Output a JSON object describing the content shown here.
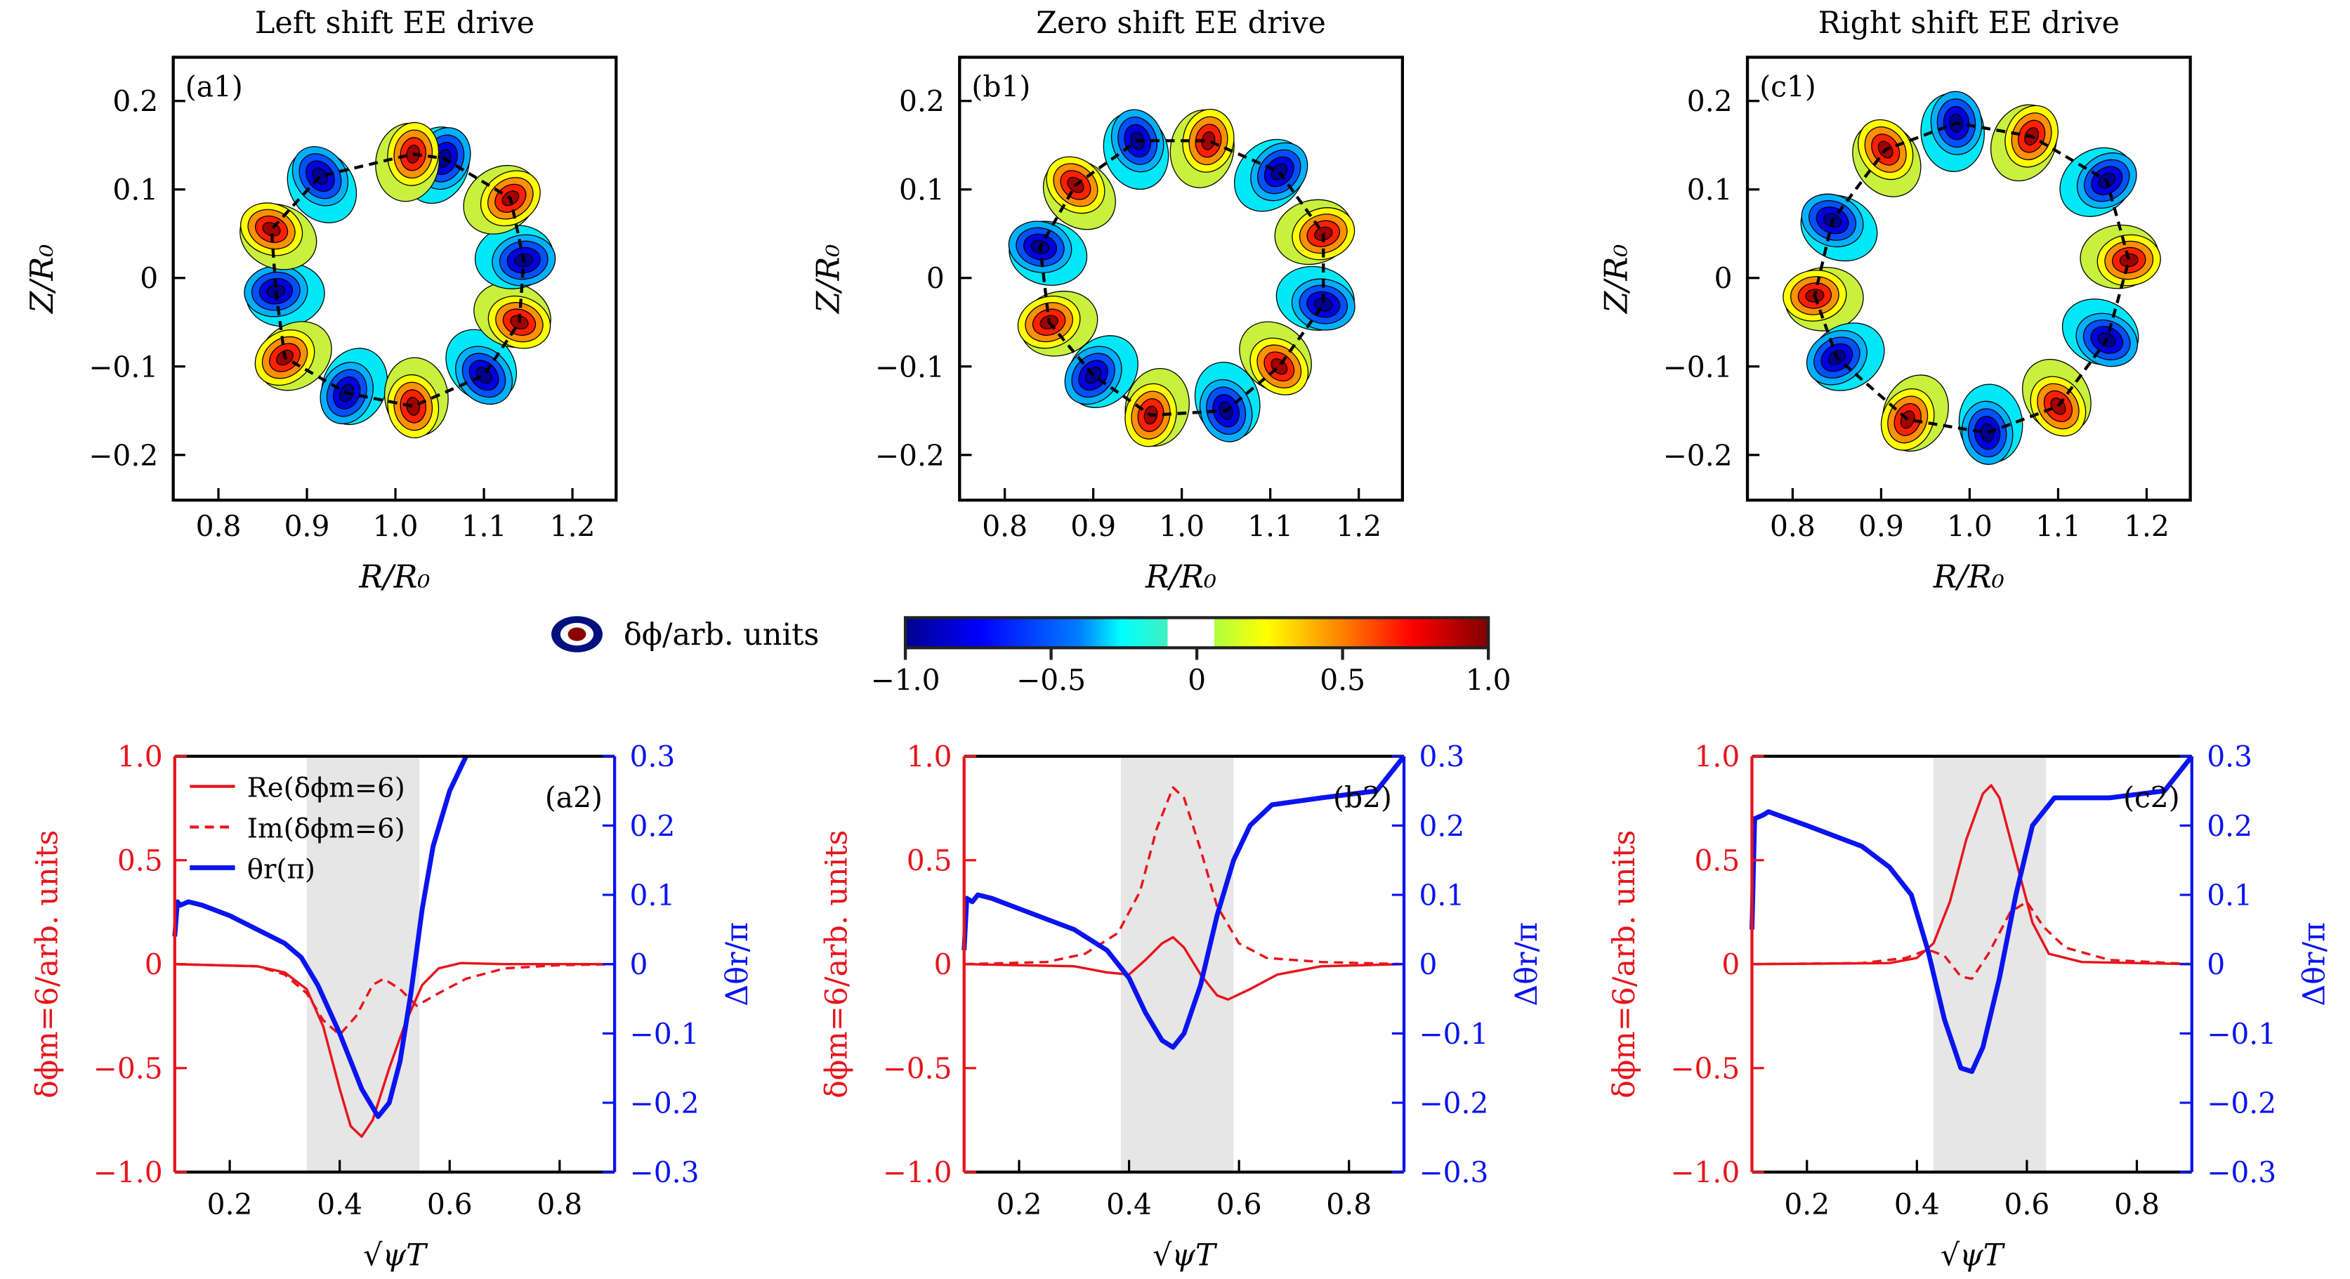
{
  "colors": {
    "red": "#e8141c",
    "blue": "#0a14f0",
    "shade": "#e6e6e6"
  },
  "top_panels": [
    {
      "title": "Left shift EE drive",
      "label": "(a1)",
      "red": [
        [
          1.02,
          0.14
        ],
        [
          1.13,
          0.09
        ],
        [
          1.14,
          -0.05
        ],
        [
          1.02,
          -0.145
        ],
        [
          0.875,
          -0.09
        ],
        [
          0.86,
          0.055
        ]
      ],
      "blue": [
        [
          1.055,
          0.135
        ],
        [
          0.915,
          0.115
        ],
        [
          0.865,
          -0.015
        ],
        [
          0.945,
          -0.13
        ],
        [
          1.1,
          -0.11
        ],
        [
          1.145,
          0.02
        ]
      ]
    },
    {
      "title": "Zero shift EE drive",
      "label": "(b1)",
      "red": [
        [
          1.03,
          0.155
        ],
        [
          1.16,
          0.05
        ],
        [
          1.11,
          -0.1
        ],
        [
          0.965,
          -0.155
        ],
        [
          0.85,
          -0.05
        ],
        [
          0.88,
          0.105
        ]
      ],
      "blue": [
        [
          0.95,
          0.155
        ],
        [
          1.11,
          0.12
        ],
        [
          1.16,
          -0.03
        ],
        [
          1.05,
          -0.15
        ],
        [
          0.9,
          -0.11
        ],
        [
          0.84,
          0.035
        ]
      ]
    },
    {
      "title": "Right shift EE drive",
      "label": "(c1)",
      "red": [
        [
          1.07,
          0.16
        ],
        [
          1.18,
          0.02
        ],
        [
          1.1,
          -0.145
        ],
        [
          0.93,
          -0.16
        ],
        [
          0.825,
          -0.02
        ],
        [
          0.905,
          0.145
        ]
      ],
      "blue": [
        [
          0.985,
          0.175
        ],
        [
          1.155,
          0.11
        ],
        [
          1.155,
          -0.07
        ],
        [
          1.02,
          -0.175
        ],
        [
          0.85,
          -0.09
        ],
        [
          0.845,
          0.065
        ]
      ]
    }
  ],
  "top_axes": {
    "xlabel": "R/R₀",
    "ylabel": "Z/R₀",
    "xticks": [
      "0.8",
      "0.9",
      "1.0",
      "1.1",
      "1.2"
    ],
    "xtick_values": [
      0.8,
      0.9,
      1.0,
      1.1,
      1.2
    ],
    "yticks": [
      "0.2",
      "0.1",
      "0",
      "−0.1",
      "−0.2"
    ],
    "ytick_values": [
      0.2,
      0.1,
      0,
      -0.1,
      -0.2
    ]
  },
  "colorbar": {
    "label": "δϕ/arb. units",
    "ticks": [
      "−1.0",
      "−0.5",
      "0",
      "0.5",
      "1.0"
    ],
    "range": [
      -1,
      1
    ]
  },
  "chart_data": [
    {
      "type": "line",
      "label": "(a2)",
      "shade": [
        0.34,
        0.545
      ],
      "series": [
        {
          "name": "Re(δϕm=6)",
          "axis": "left",
          "style": "solid",
          "x": [
            0.1,
            0.25,
            0.3,
            0.34,
            0.37,
            0.4,
            0.42,
            0.44,
            0.46,
            0.49,
            0.52,
            0.55,
            0.58,
            0.62,
            0.7,
            0.9
          ],
          "y": [
            0,
            -0.01,
            -0.04,
            -0.12,
            -0.3,
            -0.6,
            -0.78,
            -0.83,
            -0.75,
            -0.5,
            -0.28,
            -0.1,
            -0.02,
            0.005,
            0,
            0
          ]
        },
        {
          "name": "Im(δϕm=6)",
          "axis": "left",
          "style": "dashed",
          "x": [
            0.1,
            0.25,
            0.3,
            0.34,
            0.37,
            0.4,
            0.43,
            0.46,
            0.48,
            0.51,
            0.54,
            0.58,
            0.63,
            0.7,
            0.8,
            0.9
          ],
          "y": [
            0,
            -0.01,
            -0.05,
            -0.14,
            -0.27,
            -0.34,
            -0.25,
            -0.1,
            -0.07,
            -0.12,
            -0.2,
            -0.14,
            -0.07,
            -0.02,
            -0.005,
            0
          ]
        },
        {
          "name": "θr(π)",
          "axis": "right",
          "style": "thick",
          "x": [
            0.1,
            0.105,
            0.11,
            0.125,
            0.15,
            0.2,
            0.25,
            0.3,
            0.33,
            0.36,
            0.4,
            0.44,
            0.47,
            0.49,
            0.51,
            0.53,
            0.55,
            0.57,
            0.6,
            0.63
          ],
          "y": [
            0.04,
            0.09,
            0.085,
            0.09,
            0.085,
            0.07,
            0.05,
            0.03,
            0.01,
            -0.03,
            -0.1,
            -0.18,
            -0.22,
            -0.2,
            -0.14,
            -0.04,
            0.08,
            0.17,
            0.25,
            0.3
          ]
        }
      ]
    },
    {
      "type": "line",
      "label": "(b2)",
      "shade": [
        0.385,
        0.59
      ],
      "series": [
        {
          "name": "Re(δϕm=6)",
          "axis": "left",
          "style": "solid",
          "x": [
            0.1,
            0.3,
            0.36,
            0.4,
            0.43,
            0.46,
            0.48,
            0.5,
            0.53,
            0.56,
            0.58,
            0.62,
            0.67,
            0.75,
            0.9
          ],
          "y": [
            0,
            -0.01,
            -0.04,
            -0.05,
            0.02,
            0.1,
            0.13,
            0.08,
            -0.05,
            -0.15,
            -0.17,
            -0.12,
            -0.05,
            -0.01,
            0
          ]
        },
        {
          "name": "Im(δϕm=6)",
          "axis": "left",
          "style": "dashed",
          "x": [
            0.1,
            0.25,
            0.32,
            0.38,
            0.42,
            0.45,
            0.48,
            0.5,
            0.53,
            0.56,
            0.6,
            0.65,
            0.75,
            0.9
          ],
          "y": [
            0,
            0.01,
            0.05,
            0.15,
            0.35,
            0.65,
            0.85,
            0.8,
            0.55,
            0.28,
            0.1,
            0.03,
            0.01,
            0
          ]
        },
        {
          "name": "θr(π)",
          "axis": "right",
          "style": "thick",
          "x": [
            0.1,
            0.105,
            0.115,
            0.125,
            0.15,
            0.2,
            0.3,
            0.36,
            0.4,
            0.43,
            0.46,
            0.48,
            0.5,
            0.53,
            0.56,
            0.59,
            0.62,
            0.66,
            0.75,
            0.85,
            0.9
          ],
          "y": [
            0.02,
            0.095,
            0.09,
            0.1,
            0.095,
            0.08,
            0.05,
            0.02,
            -0.02,
            -0.07,
            -0.11,
            -0.12,
            -0.1,
            -0.03,
            0.07,
            0.15,
            0.2,
            0.23,
            0.24,
            0.25,
            0.3
          ]
        }
      ]
    },
    {
      "type": "line",
      "label": "(c2)",
      "shade": [
        0.43,
        0.635
      ],
      "series": [
        {
          "name": "Re(δϕm=6)",
          "axis": "left",
          "style": "solid",
          "x": [
            0.1,
            0.35,
            0.4,
            0.43,
            0.46,
            0.49,
            0.52,
            0.535,
            0.55,
            0.58,
            0.61,
            0.64,
            0.7,
            0.9
          ],
          "y": [
            0,
            0.005,
            0.03,
            0.1,
            0.3,
            0.6,
            0.82,
            0.86,
            0.8,
            0.5,
            0.2,
            0.05,
            0.01,
            0
          ]
        },
        {
          "name": "Im(δϕm=6)",
          "axis": "left",
          "style": "dashed",
          "x": [
            0.1,
            0.3,
            0.38,
            0.42,
            0.45,
            0.48,
            0.5,
            0.53,
            0.57,
            0.6,
            0.63,
            0.67,
            0.75,
            0.9
          ],
          "y": [
            0,
            0.005,
            0.03,
            0.07,
            0.04,
            -0.06,
            -0.07,
            0.05,
            0.25,
            0.3,
            0.18,
            0.08,
            0.02,
            0
          ]
        },
        {
          "name": "θr(π)",
          "axis": "right",
          "style": "thick",
          "x": [
            0.1,
            0.105,
            0.12,
            0.13,
            0.2,
            0.3,
            0.35,
            0.39,
            0.42,
            0.45,
            0.48,
            0.5,
            0.52,
            0.55,
            0.58,
            0.61,
            0.65,
            0.75,
            0.85,
            0.9
          ],
          "y": [
            0.05,
            0.21,
            0.215,
            0.22,
            0.2,
            0.17,
            0.14,
            0.1,
            0.02,
            -0.08,
            -0.15,
            -0.155,
            -0.12,
            -0.02,
            0.1,
            0.2,
            0.24,
            0.24,
            0.25,
            0.3
          ]
        }
      ]
    }
  ],
  "bottom_axes": {
    "xlabel": "√ψT",
    "xlim": [
      0.1,
      0.9
    ],
    "xticks": [
      "0.2",
      "0.4",
      "0.6",
      "0.8"
    ],
    "xtick_values": [
      0.2,
      0.4,
      0.6,
      0.8
    ],
    "left_ylabel": "δϕm=6/arb. units",
    "left_ylim": [
      -1,
      1
    ],
    "left_yticks": [
      "1.0",
      "0.5",
      "0",
      "−0.5",
      "−1.0"
    ],
    "left_ytick_values": [
      1,
      0.5,
      0,
      -0.5,
      -1
    ],
    "right_ylabel": "Δθr/π",
    "right_ylim": [
      -0.3,
      0.3
    ],
    "right_yticks": [
      "0.3",
      "0.2",
      "0.1",
      "0",
      "−0.1",
      "−0.2",
      "−0.3"
    ],
    "right_ytick_values": [
      0.3,
      0.2,
      0.1,
      0,
      -0.1,
      -0.2,
      -0.3
    ]
  },
  "legend": {
    "entries": [
      "Re(δϕm=6)",
      "Im(δϕm=6)",
      "θr(π)"
    ],
    "placement": "top-left"
  }
}
